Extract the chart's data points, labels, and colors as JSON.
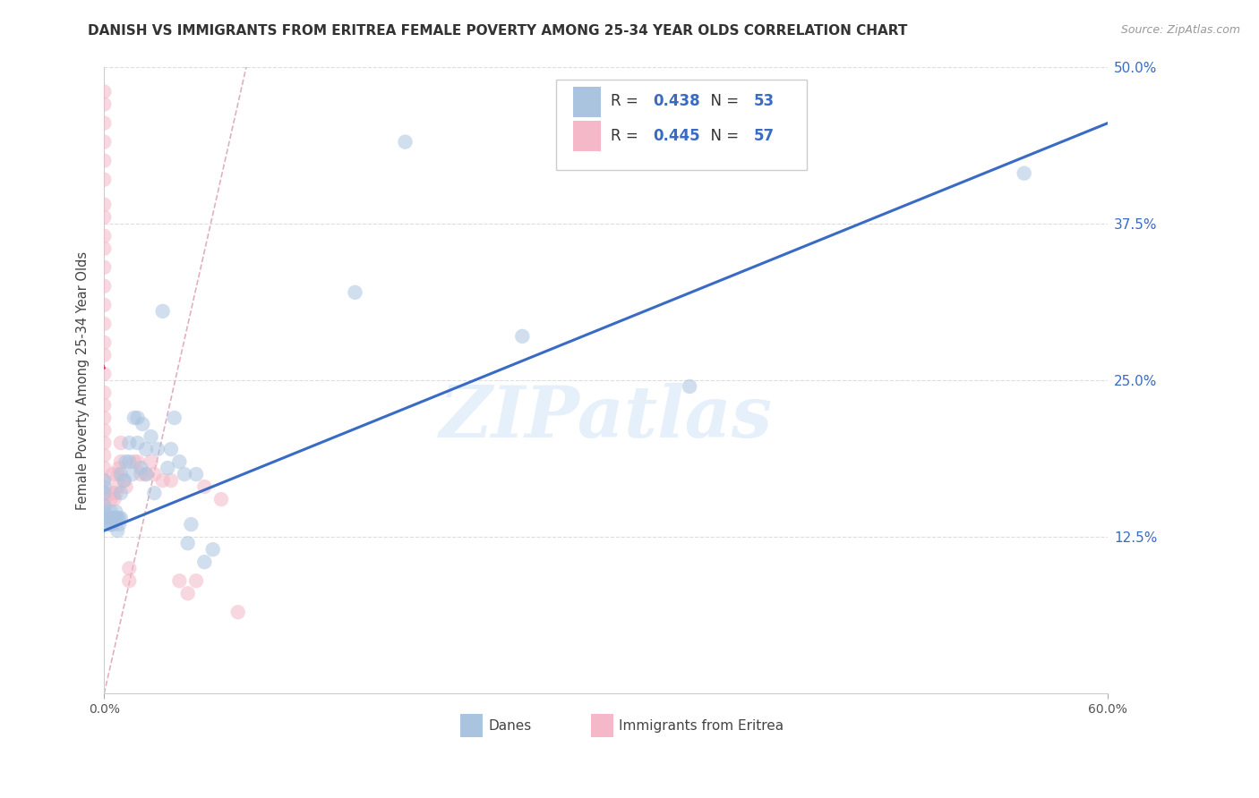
{
  "title": "DANISH VS IMMIGRANTS FROM ERITREA FEMALE POVERTY AMONG 25-34 YEAR OLDS CORRELATION CHART",
  "source": "Source: ZipAtlas.com",
  "ylabel": "Female Poverty Among 25-34 Year Olds",
  "xlim": [
    0.0,
    0.6
  ],
  "ylim": [
    0.0,
    0.5
  ],
  "xtick_left_label": "0.0%",
  "xtick_right_label": "60.0%",
  "ytick_labels": [
    "12.5%",
    "25.0%",
    "37.5%",
    "50.0%"
  ],
  "ytick_vals": [
    0.125,
    0.25,
    0.375,
    0.5
  ],
  "danes_R": 0.438,
  "danes_N": 53,
  "eritrea_R": 0.445,
  "eritrea_N": 57,
  "danes_color": "#aac4e0",
  "danes_line_color": "#3a6bc4",
  "eritrea_color": "#f4b8c8",
  "eritrea_line_color": "#d04070",
  "watermark": "ZIPatlas",
  "danes_x": [
    0.0,
    0.0,
    0.0,
    0.0,
    0.0,
    0.0,
    0.003,
    0.003,
    0.004,
    0.004,
    0.005,
    0.005,
    0.006,
    0.007,
    0.007,
    0.008,
    0.008,
    0.009,
    0.009,
    0.01,
    0.01,
    0.01,
    0.012,
    0.013,
    0.015,
    0.015,
    0.017,
    0.018,
    0.02,
    0.02,
    0.022,
    0.023,
    0.025,
    0.025,
    0.028,
    0.03,
    0.032,
    0.035,
    0.038,
    0.04,
    0.042,
    0.045,
    0.048,
    0.05,
    0.052,
    0.055,
    0.06,
    0.065,
    0.15,
    0.18,
    0.25,
    0.35,
    0.55
  ],
  "danes_y": [
    0.14,
    0.145,
    0.15,
    0.16,
    0.165,
    0.17,
    0.135,
    0.14,
    0.135,
    0.145,
    0.135,
    0.14,
    0.14,
    0.14,
    0.145,
    0.13,
    0.14,
    0.135,
    0.14,
    0.14,
    0.16,
    0.175,
    0.17,
    0.185,
    0.185,
    0.2,
    0.175,
    0.22,
    0.2,
    0.22,
    0.18,
    0.215,
    0.175,
    0.195,
    0.205,
    0.16,
    0.195,
    0.305,
    0.18,
    0.195,
    0.22,
    0.185,
    0.175,
    0.12,
    0.135,
    0.175,
    0.105,
    0.115,
    0.32,
    0.44,
    0.285,
    0.245,
    0.415
  ],
  "eritrea_x": [
    0.0,
    0.0,
    0.0,
    0.0,
    0.0,
    0.0,
    0.0,
    0.0,
    0.0,
    0.0,
    0.0,
    0.0,
    0.0,
    0.0,
    0.0,
    0.0,
    0.0,
    0.0,
    0.0,
    0.0,
    0.0,
    0.0,
    0.0,
    0.0,
    0.0,
    0.0,
    0.0,
    0.0,
    0.0,
    0.004,
    0.005,
    0.005,
    0.006,
    0.007,
    0.008,
    0.008,
    0.009,
    0.01,
    0.01,
    0.012,
    0.013,
    0.015,
    0.015,
    0.018,
    0.02,
    0.022,
    0.025,
    0.028,
    0.03,
    0.035,
    0.04,
    0.045,
    0.05,
    0.055,
    0.06,
    0.07,
    0.08
  ],
  "eritrea_y": [
    0.14,
    0.15,
    0.155,
    0.16,
    0.17,
    0.18,
    0.19,
    0.2,
    0.21,
    0.22,
    0.23,
    0.24,
    0.255,
    0.27,
    0.28,
    0.295,
    0.31,
    0.325,
    0.34,
    0.355,
    0.365,
    0.38,
    0.39,
    0.41,
    0.425,
    0.44,
    0.455,
    0.47,
    0.48,
    0.155,
    0.16,
    0.175,
    0.155,
    0.16,
    0.165,
    0.175,
    0.18,
    0.185,
    0.2,
    0.17,
    0.165,
    0.09,
    0.1,
    0.185,
    0.185,
    0.175,
    0.175,
    0.185,
    0.175,
    0.17,
    0.17,
    0.09,
    0.08,
    0.09,
    0.165,
    0.155,
    0.065
  ],
  "ref_line_x": [
    0.0,
    0.085
  ],
  "ref_line_y": [
    0.0,
    0.5
  ],
  "background_color": "#ffffff",
  "grid_color": "#dddddd",
  "title_fontsize": 11,
  "axis_label_fontsize": 10.5,
  "tick_fontsize": 10,
  "marker_size": 140,
  "marker_alpha": 0.55,
  "ref_line_color": "#e0b0c0",
  "blue_line_x0": 0.0,
  "blue_line_y0": 0.13,
  "blue_line_x1": 0.6,
  "blue_line_y1": 0.455
}
